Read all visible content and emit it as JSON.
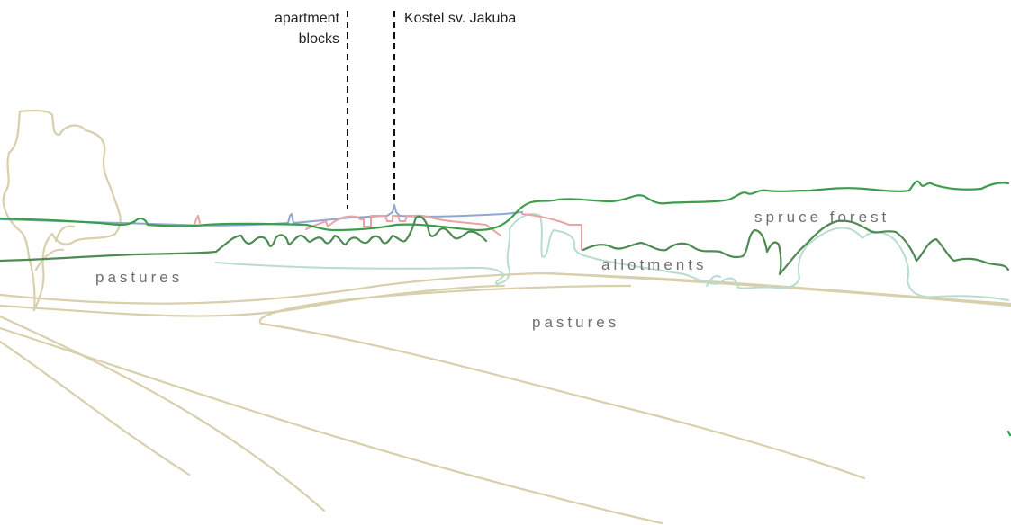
{
  "callouts": {
    "apartment_line1": "apartment",
    "apartment_line2": "blocks",
    "church": "Kostel sv. Jakuba"
  },
  "areas": {
    "pastures_left": "pastures",
    "pastures_center": "pastures",
    "allotments": "allotments",
    "spruce_forest": "spruce forest"
  },
  "colors": {
    "field_lines": "#d8cfac",
    "forest_dark": "#4f8a55",
    "forest_bright": "#3c9e4c",
    "meadow_mint": "#b9dccf",
    "town_roofs": "#e9a3a3",
    "town_skyline": "#8fa6cf",
    "tree_outline": "#d8cfac"
  }
}
